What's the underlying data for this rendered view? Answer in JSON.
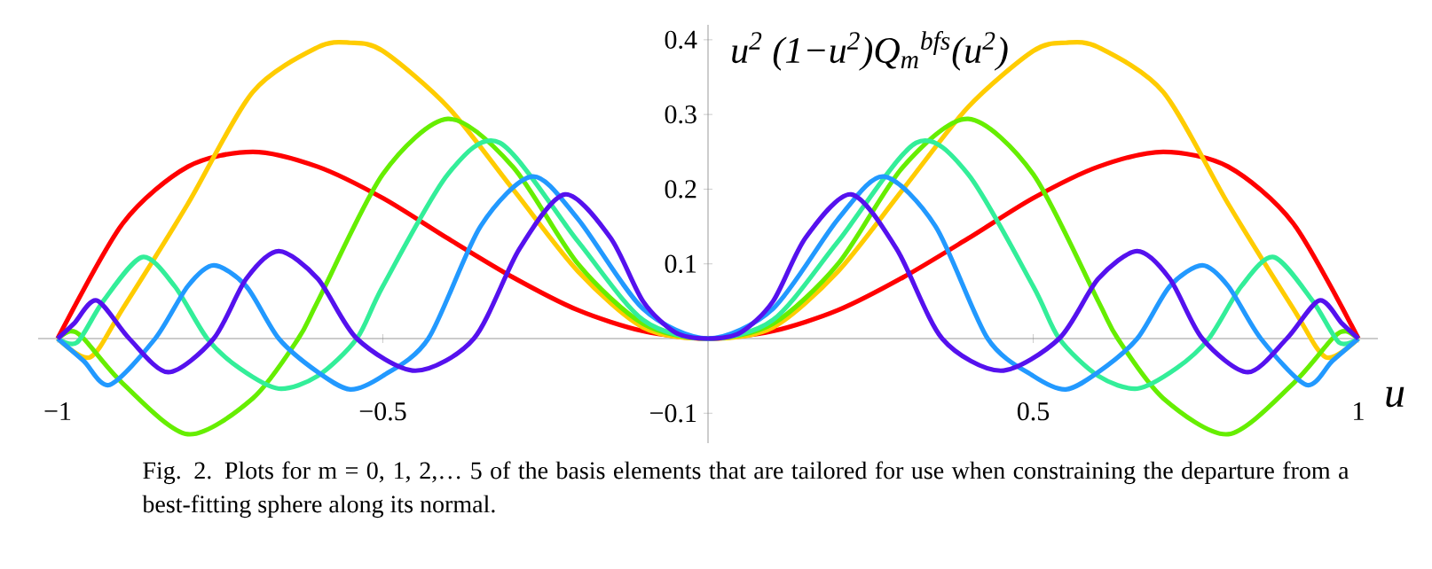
{
  "chart_data": {
    "type": "line",
    "ylabel": "u$^{2}$ (1−u$^{2}$)Q$_{m}$$^{bfs}$(u$^{2}$)",
    "xlabel": "u",
    "annotations": [
      "Fig. 2. Plots for m = 0, 1, 2,… 5 of the basis elements that are tailored for use when constraining the departure from a best-fitting sphere along its normal."
    ],
    "xlim": [
      -1.03,
      1.03
    ],
    "ylim": [
      -0.14,
      0.42
    ],
    "xticks": [
      {
        "value": -1,
        "label": "−1"
      },
      {
        "value": -0.5,
        "label": "−0.5"
      },
      0.5,
      1
    ],
    "yticks": [
      {
        "value": -0.1,
        "label": "−0.1"
      },
      0.1,
      0.2,
      0.3,
      0.4
    ],
    "line_style": "solid",
    "series": [
      {
        "color": "#ff0000",
        "x": [
          -1,
          -0.9,
          -0.8,
          -0.7,
          -0.6,
          -0.5,
          -0.4,
          -0.3,
          -0.2,
          -0.1,
          0,
          0.1,
          0.2,
          0.3,
          0.4,
          0.5,
          0.6,
          0.7,
          0.8,
          0.9,
          1
        ],
        "values": [
          0,
          0.154,
          0.23,
          0.25,
          0.23,
          0.188,
          0.134,
          0.082,
          0.038,
          0.01,
          0,
          0.01,
          0.038,
          0.082,
          0.134,
          0.188,
          0.23,
          0.25,
          0.23,
          0.154,
          0
        ]
      },
      {
        "color": "#ffcc00",
        "x": [
          -1,
          -0.95,
          -0.9,
          -0.8,
          -0.7,
          -0.6,
          -0.55,
          -0.5,
          -0.4,
          -0.3,
          -0.2,
          -0.1,
          0,
          0.1,
          0.2,
          0.3,
          0.4,
          0.5,
          0.55,
          0.6,
          0.7,
          0.8,
          0.9,
          0.95,
          1
        ],
        "values": [
          0,
          -0.025,
          0.04,
          0.18,
          0.33,
          0.39,
          0.396,
          0.385,
          0.31,
          0.2,
          0.09,
          0.015,
          0,
          0.015,
          0.09,
          0.2,
          0.31,
          0.385,
          0.396,
          0.39,
          0.33,
          0.18,
          0.04,
          -0.025,
          0
        ]
      },
      {
        "color": "#66ee00",
        "x": [
          -1,
          -0.98,
          -0.96,
          -0.9,
          -0.8,
          -0.7,
          -0.63,
          -0.6,
          -0.5,
          -0.4,
          -0.3,
          -0.2,
          -0.1,
          0,
          0.1,
          0.2,
          0.3,
          0.4,
          0.5,
          0.6,
          0.63,
          0.7,
          0.8,
          0.9,
          0.96,
          0.98,
          1
        ],
        "values": [
          0,
          0.01,
          0,
          -0.06,
          -0.128,
          -0.08,
          0,
          0.05,
          0.22,
          0.294,
          0.23,
          0.1,
          0.02,
          0,
          0.02,
          0.1,
          0.23,
          0.294,
          0.22,
          0.05,
          0,
          -0.08,
          -0.128,
          -0.06,
          0,
          0.01,
          0
        ]
      },
      {
        "color": "#33ee99",
        "x": [
          -1,
          -0.97,
          -0.93,
          -0.87,
          -0.82,
          -0.77,
          -0.72,
          -0.66,
          -0.6,
          -0.54,
          -0.5,
          -0.4,
          -0.32,
          -0.2,
          -0.1,
          0,
          0.1,
          0.2,
          0.32,
          0.4,
          0.5,
          0.54,
          0.6,
          0.66,
          0.72,
          0.77,
          0.82,
          0.87,
          0.93,
          0.97,
          1
        ],
        "values": [
          0,
          -0.005,
          0.05,
          0.109,
          0.07,
          0,
          -0.04,
          -0.067,
          -0.05,
          0,
          0.07,
          0.22,
          0.262,
          0.13,
          0.025,
          0,
          0.025,
          0.13,
          0.262,
          0.22,
          0.07,
          0,
          -0.05,
          -0.067,
          -0.04,
          0,
          0.07,
          0.109,
          0.05,
          -0.005,
          0
        ]
      },
      {
        "color": "#2299ff",
        "x": [
          -1,
          -0.96,
          -0.92,
          -0.85,
          -0.8,
          -0.76,
          -0.71,
          -0.66,
          -0.6,
          -0.55,
          -0.5,
          -0.43,
          -0.35,
          -0.27,
          -0.2,
          -0.1,
          0,
          0.1,
          0.2,
          0.27,
          0.35,
          0.43,
          0.5,
          0.55,
          0.6,
          0.66,
          0.71,
          0.76,
          0.8,
          0.85,
          0.92,
          0.96,
          1
        ],
        "values": [
          0,
          -0.03,
          -0.062,
          0,
          0.07,
          0.098,
          0.07,
          0,
          -0.045,
          -0.068,
          -0.05,
          0,
          0.15,
          0.217,
          0.16,
          0.04,
          0,
          0.04,
          0.16,
          0.217,
          0.15,
          0,
          -0.05,
          -0.068,
          -0.045,
          0,
          0.07,
          0.098,
          0.07,
          0,
          -0.062,
          -0.03,
          0
        ]
      },
      {
        "color": "#5511ee",
        "x": [
          -1,
          -0.975,
          -0.94,
          -0.89,
          -0.83,
          -0.76,
          -0.71,
          -0.66,
          -0.6,
          -0.54,
          -0.45,
          -0.36,
          -0.29,
          -0.22,
          -0.15,
          -0.1,
          -0.05,
          0,
          0.05,
          0.1,
          0.15,
          0.22,
          0.29,
          0.36,
          0.45,
          0.54,
          0.6,
          0.66,
          0.71,
          0.76,
          0.83,
          0.89,
          0.94,
          0.975,
          1
        ],
        "values": [
          0,
          0.02,
          0.051,
          0,
          -0.045,
          0,
          0.08,
          0.117,
          0.08,
          0,
          -0.043,
          0,
          0.12,
          0.193,
          0.135,
          0.05,
          0.008,
          0,
          0.008,
          0.05,
          0.135,
          0.193,
          0.12,
          0,
          -0.043,
          0,
          0.08,
          0.117,
          0.08,
          0,
          -0.045,
          0,
          0.051,
          0.02,
          0
        ]
      }
    ]
  }
}
